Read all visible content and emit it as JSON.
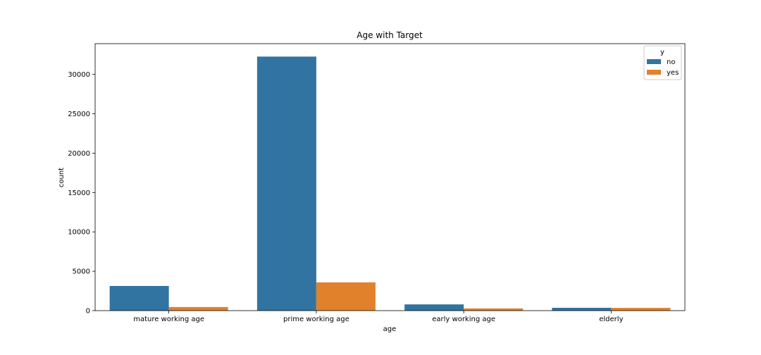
{
  "chart_data": {
    "type": "bar",
    "title": "Age with Target",
    "xlabel": "age",
    "ylabel": "count",
    "categories": [
      "mature working age",
      "prime working age",
      "early working age",
      "elderly"
    ],
    "series": [
      {
        "name": "no",
        "color": "#3274a1",
        "values": [
          3130,
          32260,
          790,
          360
        ]
      },
      {
        "name": "yes",
        "color": "#e1812c",
        "values": [
          460,
          3590,
          280,
          350
        ]
      }
    ],
    "ylim": [
      0,
      33900
    ],
    "yticks": [
      0,
      5000,
      10000,
      15000,
      20000,
      25000,
      30000
    ],
    "grid": false,
    "legend": {
      "title": "y",
      "placement": "top-right"
    }
  }
}
